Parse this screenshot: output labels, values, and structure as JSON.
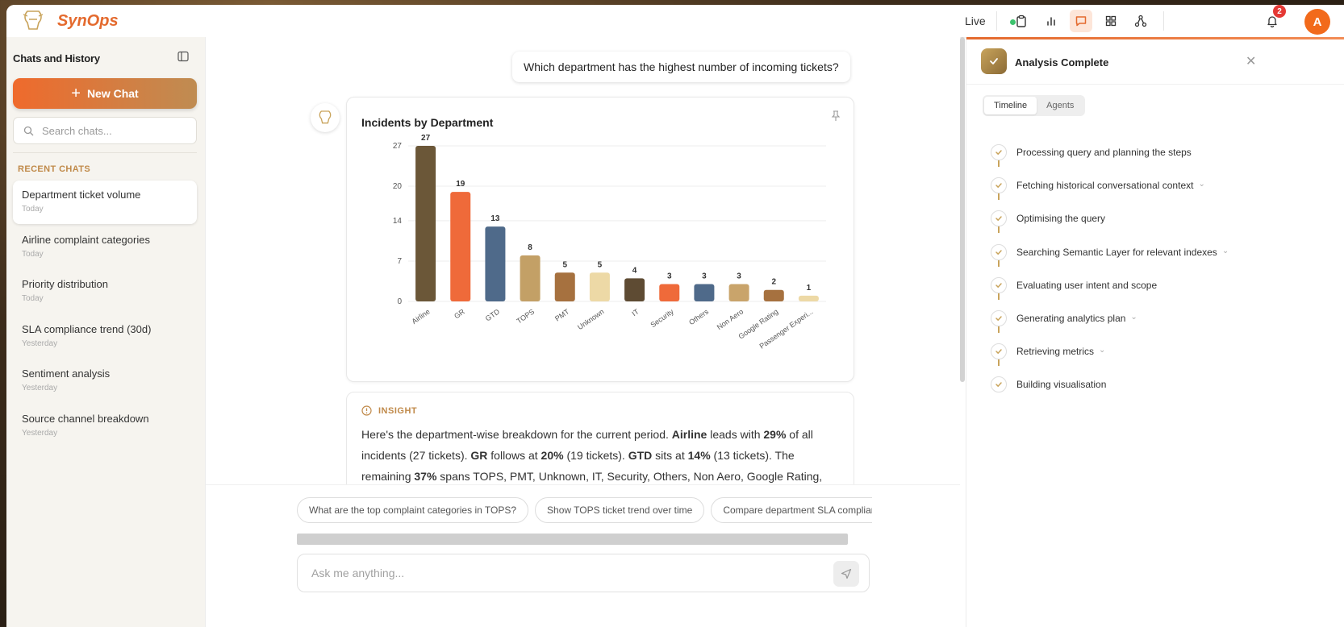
{
  "app": {
    "brand": "SynOps",
    "live_label": "Live",
    "notification_count": "2",
    "avatar_initial": "A",
    "accent_color": "#e46a2e"
  },
  "sidebar": {
    "title": "Chats and History",
    "new_chat_label": "New Chat",
    "search_placeholder": "Search chats...",
    "recent_label": "RECENT CHATS",
    "chats": [
      {
        "title": "Department ticket volume",
        "date": "Today"
      },
      {
        "title": "Airline complaint categories",
        "date": "Today"
      },
      {
        "title": "Priority distribution",
        "date": "Today"
      },
      {
        "title": "SLA compliance trend (30d)",
        "date": "Yesterday"
      },
      {
        "title": "Sentiment analysis",
        "date": "Yesterday"
      },
      {
        "title": "Source channel breakdown",
        "date": "Yesterday"
      }
    ]
  },
  "conversation": {
    "user_message": "Which department has the highest number of incoming tickets?",
    "insight_label": "INSIGHT",
    "insight": {
      "p1": "Here's the department-wise breakdown for the current period. ",
      "b1": "Airline",
      "p2": " leads with ",
      "b2": "29%",
      "p3": " of all incidents (27 tickets). ",
      "b3": "GR",
      "p4": " follows at ",
      "b4": "20%",
      "p5": " (19 tickets). ",
      "b5": "GTD",
      "p6": " sits at ",
      "b6": "14%",
      "p7": " (13 tickets). The remaining ",
      "b7": "37%",
      "p8": " spans TOPS, PMT, Unknown, IT, Security, Others, Non Aero, Google Rating, Passenger"
    },
    "suggestions": [
      "What are the top complaint categories in TOPS?",
      "Show TOPS ticket trend over time",
      "Compare department SLA compliance"
    ],
    "input_placeholder": "Ask me anything..."
  },
  "chart_data": {
    "type": "bar",
    "title": "Incidents by Department",
    "categories": [
      "Airline",
      "GR",
      "GTD",
      "TOPS",
      "PMT",
      "Unknown",
      "IT",
      "Security",
      "Others",
      "Non Aero",
      "Google Rating",
      "Passenger Experi..."
    ],
    "values": [
      27,
      19,
      13,
      8,
      5,
      5,
      4,
      3,
      3,
      3,
      2,
      1
    ],
    "colors": [
      "#6b5738",
      "#ef6a3a",
      "#4f6a8a",
      "#c3a066",
      "#a6713f",
      "#edd9a6",
      "#5e4b33",
      "#ef6a3a",
      "#4f6a8a",
      "#c9a46b",
      "#a6713f",
      "#edd9a6"
    ],
    "y_ticks": [
      0,
      7,
      14,
      20,
      27
    ],
    "ylim": [
      0,
      27
    ],
    "grid": true,
    "xlabel": "",
    "ylabel": ""
  },
  "analysis_panel": {
    "title": "Analysis Complete",
    "tabs": [
      "Timeline",
      "Agents"
    ],
    "steps": [
      {
        "label": "Processing query and planning the steps",
        "expandable": false
      },
      {
        "label": "Fetching historical conversational context",
        "expandable": true
      },
      {
        "label": "Optimising the query",
        "expandable": false
      },
      {
        "label": "Searching Semantic Layer for relevant indexes",
        "expandable": true
      },
      {
        "label": "Evaluating user intent and scope",
        "expandable": false
      },
      {
        "label": "Generating analytics plan",
        "expandable": true
      },
      {
        "label": "Retrieving metrics",
        "expandable": true
      },
      {
        "label": "Building visualisation",
        "expandable": false
      }
    ]
  }
}
